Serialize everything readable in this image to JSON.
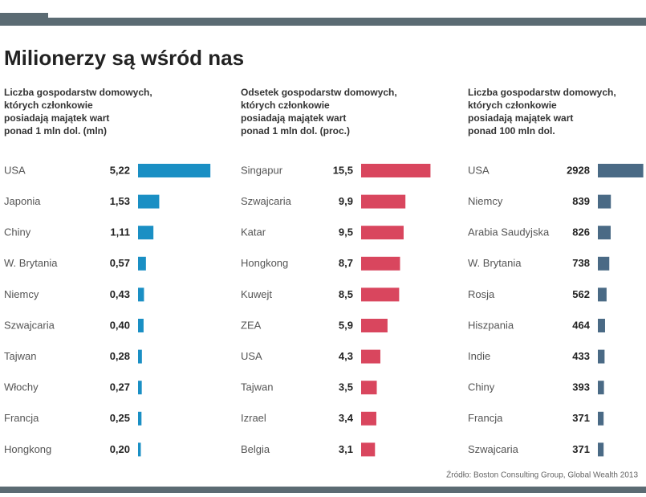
{
  "title": "Milionerzy są wśród nas",
  "source": "Źródło: Boston Consulting Group, Global Wealth 2013",
  "chart_data": [
    {
      "type": "bar",
      "orientation": "horizontal",
      "subtitle": [
        "Liczba gospodarstw domowych,",
        "których członkowie",
        "posiadają majątek wart",
        "ponad 1 mln dol. (mln)"
      ],
      "categories": [
        "USA",
        "Japonia",
        "Chiny",
        "W. Brytania",
        "Niemcy",
        "Szwajcaria",
        "Tajwan",
        "Włochy",
        "Francja",
        "Hongkong"
      ],
      "values": [
        5.22,
        1.53,
        1.11,
        0.57,
        0.43,
        0.4,
        0.28,
        0.27,
        0.25,
        0.2
      ],
      "value_labels": [
        "5,22",
        "1,53",
        "1,11",
        "0,57",
        "0,43",
        "0,40",
        "0,28",
        "0,27",
        "0,25",
        "0,20"
      ],
      "color": "#1a8fc4",
      "xlim": [
        0,
        5.5
      ]
    },
    {
      "type": "bar",
      "orientation": "horizontal",
      "subtitle": [
        "Odsetek gospodarstw domowych,",
        "których członkowie",
        "posiadają majątek wart",
        "ponad 1 mln dol. (proc.)"
      ],
      "categories": [
        "Singapur",
        "Szwajcaria",
        "Katar",
        "Hongkong",
        "Kuwejt",
        "ZEA",
        "USA",
        "Tajwan",
        "Izrael",
        "Belgia"
      ],
      "values": [
        15.5,
        9.9,
        9.5,
        8.7,
        8.5,
        5.9,
        4.3,
        3.5,
        3.4,
        3.1
      ],
      "value_labels": [
        "15,5",
        "9,9",
        "9,5",
        "8,7",
        "8,5",
        "5,9",
        "4,3",
        "3,5",
        "3,4",
        "3,1"
      ],
      "color": "#d9465e",
      "xlim": [
        0,
        16.5
      ]
    },
    {
      "type": "bar",
      "orientation": "horizontal",
      "subtitle": [
        "Liczba gospodarstw domowych,",
        "których członkowie",
        "posiadają majątek wart",
        "ponad 100 mln dol."
      ],
      "categories": [
        "USA",
        "Niemcy",
        "Arabia Saudyjska",
        "W. Brytania",
        "Rosja",
        "Hiszpania",
        "Indie",
        "Chiny",
        "Francja",
        "Szwajcaria"
      ],
      "values": [
        2928,
        839,
        826,
        738,
        562,
        464,
        433,
        393,
        371,
        371
      ],
      "color": "#4a6a85",
      "xlim": [
        0,
        3000
      ]
    }
  ]
}
